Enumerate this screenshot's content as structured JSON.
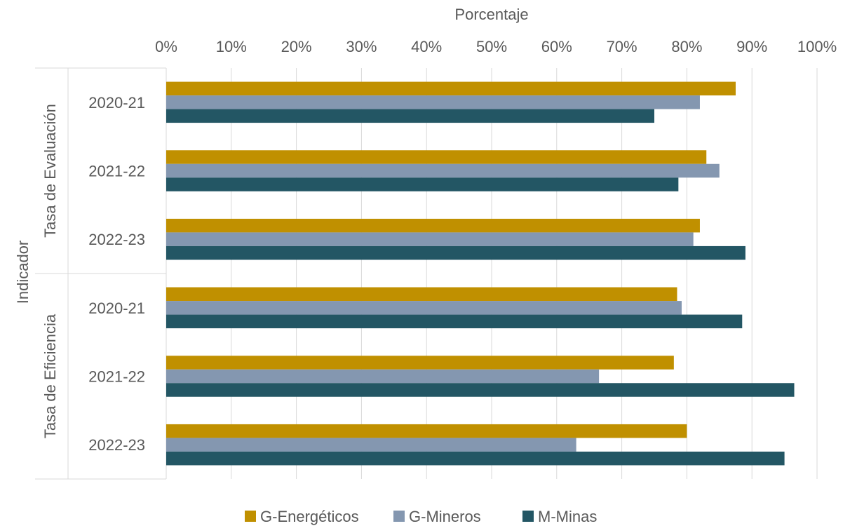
{
  "chart_data": {
    "type": "bar",
    "orientation": "horizontal",
    "xlabel": "Porcentaje",
    "ylabel": "Indicador",
    "xlim": [
      0,
      100
    ],
    "x_ticks": [
      "0%",
      "10%",
      "20%",
      "30%",
      "40%",
      "50%",
      "60%",
      "70%",
      "80%",
      "90%",
      "100%"
    ],
    "x_axis_position": "top",
    "grid": "vertical",
    "legend_position": "bottom",
    "groups": [
      {
        "name": "Tasa de Evaluación",
        "categories": [
          "2020-21",
          "2021-22",
          "2022-23"
        ]
      },
      {
        "name": "Tasa de Eficiencia",
        "categories": [
          "2020-21",
          "2021-22",
          "2022-23"
        ]
      }
    ],
    "series": [
      {
        "name": "G-Energéticos",
        "color": "#C09000",
        "values": [
          87.5,
          83,
          82,
          78.5,
          78,
          80
        ]
      },
      {
        "name": "G-Mineros",
        "color": "#8497B0",
        "values": [
          82,
          85,
          81,
          79.2,
          66.5,
          63
        ]
      },
      {
        "name": "M-Minas",
        "color": "#235664",
        "values": [
          75,
          78.7,
          89,
          88.5,
          96.5,
          95
        ]
      }
    ]
  }
}
